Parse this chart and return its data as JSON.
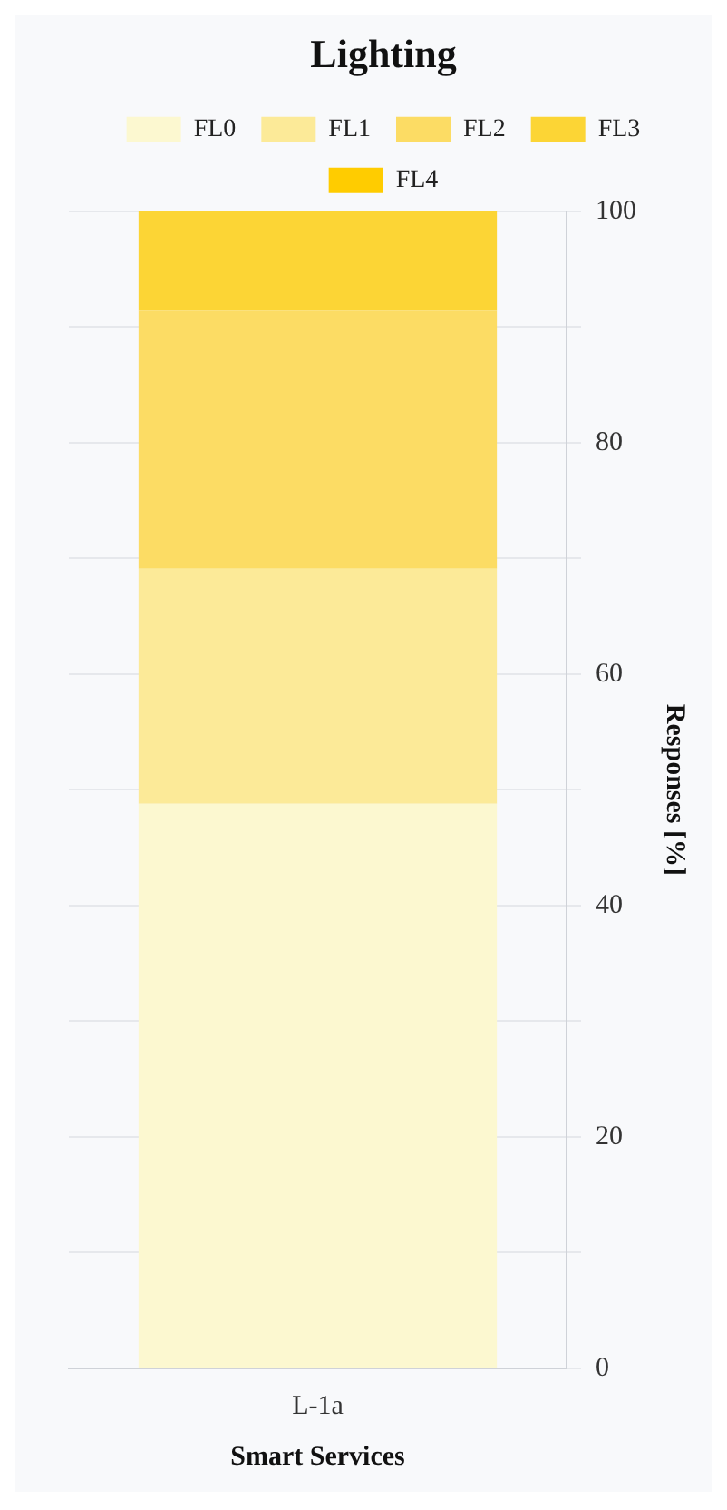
{
  "chart_data": {
    "type": "bar",
    "stacked": true,
    "title": "Lighting",
    "ylabel": "Responses [%]",
    "xlabel": "Smart Services",
    "categories": [
      "L-1a"
    ],
    "series": [
      {
        "name": "FL0",
        "color": "#fcf8d0",
        "values": [
          48.8
        ]
      },
      {
        "name": "FL1",
        "color": "#fcea98",
        "values": [
          20.3
        ]
      },
      {
        "name": "FL2",
        "color": "#fcdc64",
        "values": [
          22.3
        ]
      },
      {
        "name": "FL3",
        "color": "#fcd535",
        "values": [
          8.6
        ]
      },
      {
        "name": "FL4",
        "color": "#ffcc00",
        "values": [
          0
        ]
      }
    ],
    "ylim": [
      0,
      100
    ],
    "yticks": [
      0,
      {
        "value": 10,
        "label": null
      },
      20,
      {
        "value": 30,
        "label": null
      },
      40,
      {
        "value": 50,
        "label": null
      },
      60,
      {
        "value": 70,
        "label": null
      },
      80,
      {
        "value": 90,
        "label": null
      },
      100
    ],
    "grid": "y",
    "legend": "top"
  }
}
